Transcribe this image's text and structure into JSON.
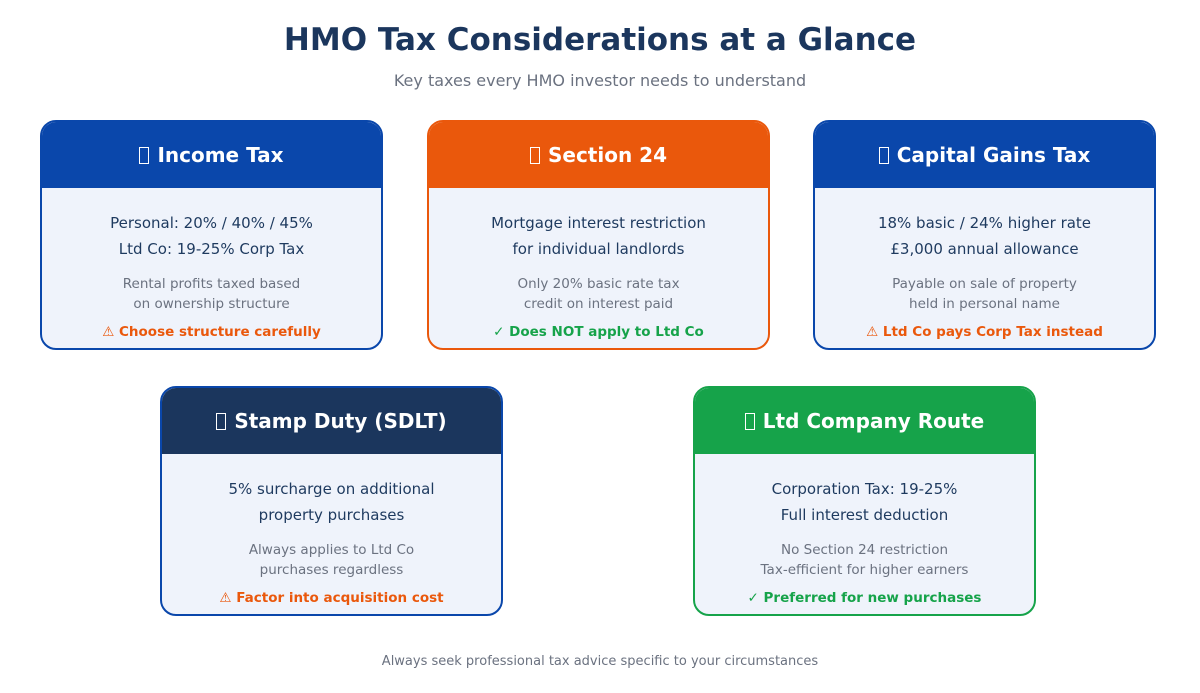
{
  "title": "HMO Tax Considerations at a Glance",
  "subtitle": "Key taxes every HMO investor needs to understand",
  "footer": "Always seek professional tax advice specific to your circumstances",
  "colors": {
    "blue": "#0a47ab",
    "orange": "#ea580c",
    "navy": "#1b365d",
    "green": "#16a34a"
  },
  "cards": [
    {
      "icon": "missing-glyph-icon",
      "title": "Income Tax",
      "line1": "Personal: 20% / 40% / 45%",
      "line2": "Ltd Co: 19-25% Corp Tax",
      "detail1": "Rental profits taxed based",
      "detail2": "on ownership structure",
      "note": "⚠ Choose structure carefully",
      "header_color": "#0a47ab",
      "border_color": "#0a47ab",
      "note_color": "#ea580c"
    },
    {
      "icon": "missing-glyph-icon",
      "title": "Section 24",
      "line1": "Mortgage interest restriction",
      "line2": "for individual landlords",
      "detail1": "Only 20% basic rate tax",
      "detail2": "credit on interest paid",
      "note": "✓ Does NOT apply to Ltd Co",
      "header_color": "#ea580c",
      "border_color": "#ea580c",
      "note_color": "#16a34a"
    },
    {
      "icon": "missing-glyph-icon",
      "title": "Capital Gains Tax",
      "line1": "18% basic / 24% higher rate",
      "line2": "£3,000 annual allowance",
      "detail1": "Payable on sale of property",
      "detail2": "held in personal name",
      "note": "⚠ Ltd Co pays Corp Tax instead",
      "header_color": "#0a47ab",
      "border_color": "#0a47ab",
      "note_color": "#ea580c"
    },
    {
      "icon": "missing-glyph-icon",
      "title": "Stamp Duty (SDLT)",
      "line1": "5% surcharge on additional",
      "line2": "property purchases",
      "detail1": "Always applies to Ltd Co",
      "detail2": "purchases regardless",
      "note": "⚠ Factor into acquisition cost",
      "header_color": "#1b365d",
      "border_color": "#0a47ab",
      "note_color": "#ea580c"
    },
    {
      "icon": "missing-glyph-icon",
      "title": "Ltd Company Route",
      "line1": "Corporation Tax: 19-25%",
      "line2": "Full interest deduction",
      "detail1": "No Section 24 restriction",
      "detail2": "Tax-efficient for higher earners",
      "note": "✓ Preferred for new purchases",
      "header_color": "#16a34a",
      "border_color": "#16a34a",
      "note_color": "#16a34a"
    }
  ]
}
